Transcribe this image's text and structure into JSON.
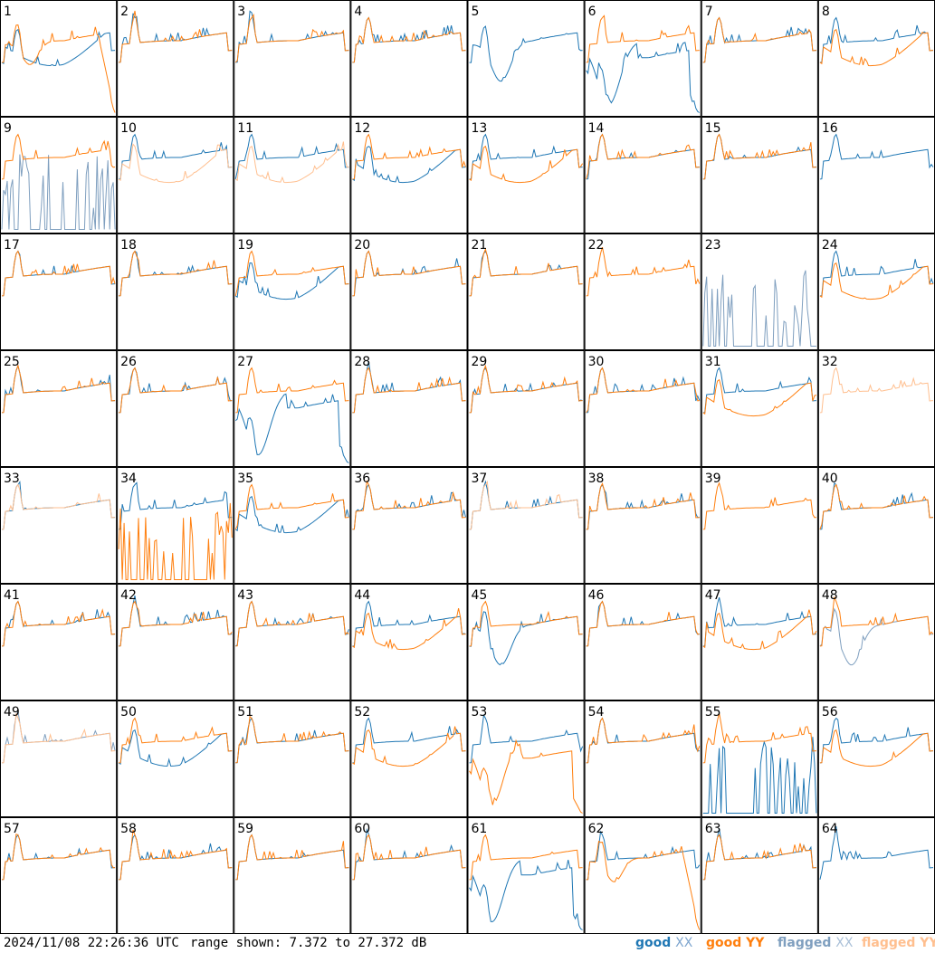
{
  "chart_data": {
    "type": "line",
    "layout": "small-multiples grid, 8 columns x 8 rows",
    "panels": [
      {
        "label": "1",
        "shape_xx": "low",
        "shape_yy": "spiky_drop",
        "flag": "none"
      },
      {
        "label": "2",
        "shape_xx": "normal",
        "shape_yy": "normal",
        "flag": "none"
      },
      {
        "label": "3",
        "shape_xx": "normal",
        "shape_yy": "normal",
        "flag": "none"
      },
      {
        "label": "4",
        "shape_xx": "normal",
        "shape_yy": "normal",
        "flag": "none"
      },
      {
        "label": "5",
        "shape_xx": "dip",
        "shape_yy": "absent",
        "flag": "none"
      },
      {
        "label": "6",
        "shape_xx": "deep_dip",
        "shape_yy": "normal",
        "flag": "none"
      },
      {
        "label": "7",
        "shape_xx": "normal",
        "shape_yy": "normal",
        "flag": "none"
      },
      {
        "label": "8",
        "shape_xx": "normal",
        "shape_yy": "low",
        "flag": "none"
      },
      {
        "label": "9",
        "shape_xx": "sparse",
        "shape_yy": "normal",
        "flag": "xx"
      },
      {
        "label": "10",
        "shape_xx": "normal",
        "shape_yy": "low",
        "flag": "yy"
      },
      {
        "label": "11",
        "shape_xx": "normal",
        "shape_yy": "low",
        "flag": "yy"
      },
      {
        "label": "12",
        "shape_xx": "low",
        "shape_yy": "normal",
        "flag": "none"
      },
      {
        "label": "13",
        "shape_xx": "normal",
        "shape_yy": "low",
        "flag": "none"
      },
      {
        "label": "14",
        "shape_xx": "normal",
        "shape_yy": "normal",
        "flag": "none"
      },
      {
        "label": "15",
        "shape_xx": "normal",
        "shape_yy": "normal",
        "flag": "none"
      },
      {
        "label": "16",
        "shape_xx": "normal",
        "shape_yy": "absent",
        "flag": "yy"
      },
      {
        "label": "17",
        "shape_xx": "normal",
        "shape_yy": "normal",
        "flag": "none"
      },
      {
        "label": "18",
        "shape_xx": "normal",
        "shape_yy": "normal",
        "flag": "none"
      },
      {
        "label": "19",
        "shape_xx": "low",
        "shape_yy": "normal",
        "flag": "none"
      },
      {
        "label": "20",
        "shape_xx": "normal",
        "shape_yy": "normal",
        "flag": "none"
      },
      {
        "label": "21",
        "shape_xx": "normal",
        "shape_yy": "normal",
        "flag": "none"
      },
      {
        "label": "22",
        "shape_xx": "absent",
        "shape_yy": "normal",
        "flag": "none"
      },
      {
        "label": "23",
        "shape_xx": "sparse",
        "shape_yy": "absent",
        "flag": "xx"
      },
      {
        "label": "24",
        "shape_xx": "normal",
        "shape_yy": "low",
        "flag": "none"
      },
      {
        "label": "25",
        "shape_xx": "normal",
        "shape_yy": "normal",
        "flag": "none"
      },
      {
        "label": "26",
        "shape_xx": "normal",
        "shape_yy": "normal",
        "flag": "none"
      },
      {
        "label": "27",
        "shape_xx": "deep_dip",
        "shape_yy": "normal",
        "flag": "none"
      },
      {
        "label": "28",
        "shape_xx": "normal",
        "shape_yy": "normal",
        "flag": "none"
      },
      {
        "label": "29",
        "shape_xx": "normal",
        "shape_yy": "normal",
        "flag": "none"
      },
      {
        "label": "30",
        "shape_xx": "normal",
        "shape_yy": "normal",
        "flag": "none"
      },
      {
        "label": "31",
        "shape_xx": "normal",
        "shape_yy": "low",
        "flag": "none"
      },
      {
        "label": "32",
        "shape_xx": "absent",
        "shape_yy": "normal",
        "flag": "yy"
      },
      {
        "label": "33",
        "shape_xx": "normal",
        "shape_yy": "normal",
        "flag": "yy"
      },
      {
        "label": "34",
        "shape_xx": "normal",
        "shape_yy": "sparse",
        "flag": "none"
      },
      {
        "label": "35",
        "shape_xx": "low",
        "shape_yy": "normal",
        "flag": "none"
      },
      {
        "label": "36",
        "shape_xx": "normal",
        "shape_yy": "normal",
        "flag": "none"
      },
      {
        "label": "37",
        "shape_xx": "normal",
        "shape_yy": "normal",
        "flag": "yy"
      },
      {
        "label": "38",
        "shape_xx": "normal",
        "shape_yy": "normal",
        "flag": "none"
      },
      {
        "label": "39",
        "shape_xx": "absent",
        "shape_yy": "normal",
        "flag": "none"
      },
      {
        "label": "40",
        "shape_xx": "normal",
        "shape_yy": "normal",
        "flag": "none"
      },
      {
        "label": "41",
        "shape_xx": "normal",
        "shape_yy": "normal",
        "flag": "none"
      },
      {
        "label": "42",
        "shape_xx": "normal",
        "shape_yy": "normal",
        "flag": "none"
      },
      {
        "label": "43",
        "shape_xx": "normal",
        "shape_yy": "normal",
        "flag": "none"
      },
      {
        "label": "44",
        "shape_xx": "normal",
        "shape_yy": "low",
        "flag": "none"
      },
      {
        "label": "45",
        "shape_xx": "dip",
        "shape_yy": "normal",
        "flag": "none"
      },
      {
        "label": "46",
        "shape_xx": "normal",
        "shape_yy": "normal",
        "flag": "none"
      },
      {
        "label": "47",
        "shape_xx": "normal",
        "shape_yy": "low",
        "flag": "none"
      },
      {
        "label": "48",
        "shape_xx": "dip",
        "shape_yy": "normal",
        "flag": "xx"
      },
      {
        "label": "49",
        "shape_xx": "normal",
        "shape_yy": "normal",
        "flag": "both"
      },
      {
        "label": "50",
        "shape_xx": "low",
        "shape_yy": "normal",
        "flag": "none"
      },
      {
        "label": "51",
        "shape_xx": "normal",
        "shape_yy": "normal",
        "flag": "none"
      },
      {
        "label": "52",
        "shape_xx": "normal",
        "shape_yy": "low",
        "flag": "none"
      },
      {
        "label": "53",
        "shape_xx": "normal",
        "shape_yy": "deep_dip",
        "flag": "none"
      },
      {
        "label": "54",
        "shape_xx": "normal",
        "shape_yy": "normal",
        "flag": "none"
      },
      {
        "label": "55",
        "shape_xx": "sparse",
        "shape_yy": "normal",
        "flag": "none"
      },
      {
        "label": "56",
        "shape_xx": "normal",
        "shape_yy": "low",
        "flag": "none"
      },
      {
        "label": "57",
        "shape_xx": "normal",
        "shape_yy": "normal",
        "flag": "none"
      },
      {
        "label": "58",
        "shape_xx": "normal",
        "shape_yy": "normal",
        "flag": "none"
      },
      {
        "label": "59",
        "shape_xx": "normal",
        "shape_yy": "normal",
        "flag": "none"
      },
      {
        "label": "60",
        "shape_xx": "normal",
        "shape_yy": "normal",
        "flag": "none"
      },
      {
        "label": "61",
        "shape_xx": "deep_dip",
        "shape_yy": "normal",
        "flag": "none"
      },
      {
        "label": "62",
        "shape_xx": "normal",
        "shape_yy": "spiky_drop",
        "flag": "none"
      },
      {
        "label": "63",
        "shape_xx": "normal",
        "shape_yy": "normal",
        "flag": "none"
      },
      {
        "label": "64",
        "shape_xx": "normal",
        "shape_yy": "absent",
        "flag": "yy"
      }
    ],
    "ylim": [
      7.372,
      27.372
    ],
    "series": [
      {
        "name": "good XX",
        "color": "#1f77b4"
      },
      {
        "name": "good YY",
        "color": "#ff7f0e"
      },
      {
        "name": "flagged XX",
        "color": "#7f9fbf"
      },
      {
        "name": "flagged YY",
        "color": "#ffbf8f"
      }
    ],
    "grid": false,
    "legend_placement": "bottom-right"
  },
  "footer": {
    "timestamp": "2024/11/08 22:26:36 UTC",
    "range_text": "range shown: 7.372 to 27.372 dB"
  },
  "legend": {
    "good_prefix": "good",
    "flagged_prefix": "flagged",
    "xx_label": "XX",
    "yy_label": "YY",
    "colors": {
      "good_xx": "#1f77b4",
      "good_yy": "#ff7f0e",
      "flagged_xx": "#7f9fbf",
      "flagged_yy": "#ffbf8f"
    }
  }
}
